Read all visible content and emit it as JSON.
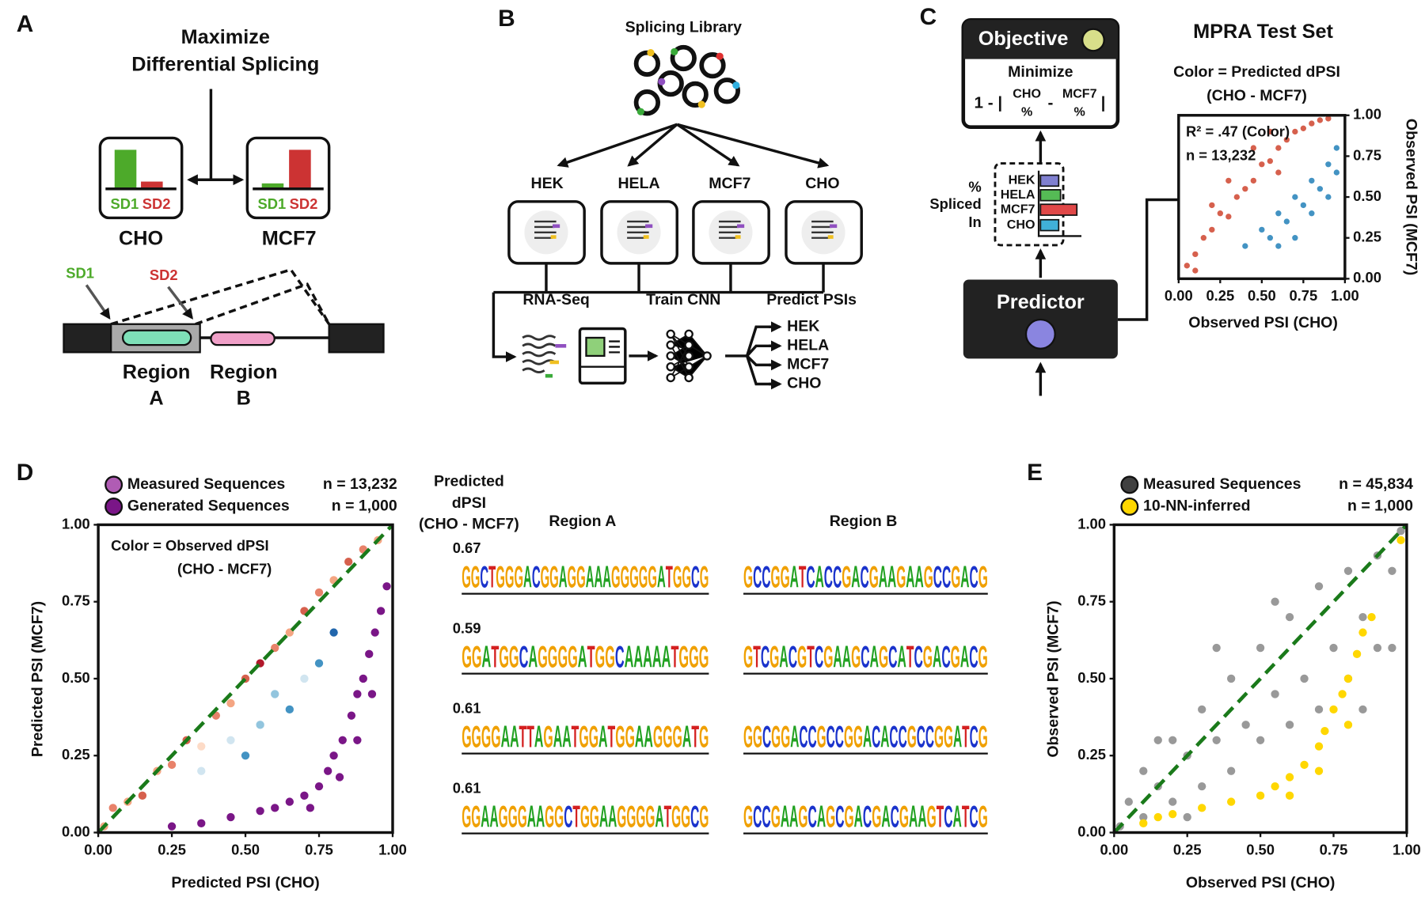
{
  "panels": {
    "a": {
      "letter": "A",
      "title": [
        "Maximize",
        "Differential Splicing"
      ],
      "cho_box": {
        "sd1": "SD1",
        "sd2": "SD2",
        "label": "CHO"
      },
      "mcf7_box": {
        "sd1": "SD1",
        "sd2": "SD2",
        "label": "MCF7"
      },
      "gene": {
        "sd1": "SD1",
        "sd2": "SD2",
        "region_a": [
          "Region",
          "A"
        ],
        "region_b": [
          "Region",
          "B"
        ]
      }
    },
    "b": {
      "letter": "B",
      "title": "Splicing Library",
      "cells": [
        "HEK",
        "HELA",
        "MCF7",
        "CHO"
      ],
      "steps": [
        "RNA-Seq",
        "Train CNN",
        "Predict PSIs"
      ],
      "outputs": [
        "HEK",
        "HELA",
        "MCF7",
        "CHO"
      ]
    },
    "c": {
      "letter": "C",
      "objective": {
        "title": "Objective",
        "goal": "Minimize",
        "formula": [
          "1 - |",
          "CHO",
          "%",
          "-",
          "MCF7",
          "%",
          "|"
        ]
      },
      "psi_bars": {
        "labels": [
          "HEK",
          "HELA",
          "MCF7",
          "CHO"
        ],
        "axis": [
          "%",
          "Spliced",
          "In"
        ]
      },
      "predictor": "Predictor"
    },
    "d": {
      "letter": "D",
      "logos": {
        "title": [
          "Predicted",
          "dPSI",
          "(CHO - MCF7)"
        ],
        "regions": [
          "Region A",
          "Region B"
        ],
        "rows": [
          {
            "dpsi": 0.67,
            "region_a": "GGCTGGGACGGAGGAAAGGGGGATGGCG",
            "region_b": "GCCGGATCACCGACGAAGAAGCCGACG"
          },
          {
            "dpsi": 0.59,
            "region_a": "GGATGGCAGGGGATGGCAAAAATGGG",
            "region_b": "GTCGACGTCGAAGCAGCATCGACGACG"
          },
          {
            "dpsi": 0.61,
            "region_a": "GGGGAATTAGAATGGATGGAAGGGATG",
            "region_b": "GGCGGACCGCCGGACACCGCCGGATCG"
          },
          {
            "dpsi": 0.61,
            "region_a": "GGAAGGGAAGGCTGGAAGGGGATGGCG",
            "region_b": "GCCGAAGCAGCGACGACGAAGTCATCG"
          }
        ]
      }
    },
    "e": {
      "letter": "E"
    }
  },
  "chart_data": [
    {
      "type": "scatter",
      "title": "MPRA Test Set",
      "subtitle": [
        "Color = Predicted dPSI",
        "(CHO - MCF7)"
      ],
      "annotations": [
        "R² = .47 (Color)",
        "n = 13,232"
      ],
      "x_label": "Observed PSI (CHO)",
      "y_label": "Observed PSI (MCF7)",
      "y_axis_side": "right",
      "xlim": [
        0,
        1
      ],
      "ylim": [
        0,
        1
      ],
      "xticks": [
        {
          "value": 0,
          "label": "0.00"
        },
        0.25,
        {
          "value": 0.5,
          "label": "0.50"
        },
        0.75,
        {
          "value": 1,
          "label": "1.00"
        }
      ],
      "yticks": [
        {
          "value": 0,
          "label": "0.00"
        },
        0.25,
        {
          "value": 0.5,
          "label": "0.50"
        },
        0.75,
        {
          "value": 1,
          "label": "1.00"
        }
      ],
      "series": [
        {
          "color": "#d6604d",
          "x": [
            0.05,
            0.1,
            0.15,
            0.2,
            0.25,
            0.3,
            0.35,
            0.4,
            0.45,
            0.5,
            0.55,
            0.6,
            0.65,
            0.7,
            0.75,
            0.8,
            0.85,
            0.9,
            0.2,
            0.3,
            0.45,
            0.55,
            0.1,
            0.6
          ],
          "values": [
            0.08,
            0.15,
            0.25,
            0.3,
            0.4,
            0.38,
            0.5,
            0.55,
            0.6,
            0.7,
            0.72,
            0.8,
            0.85,
            0.9,
            0.92,
            0.95,
            0.97,
            0.98,
            0.45,
            0.6,
            0.8,
            0.9,
            0.05,
            0.65
          ]
        },
        {
          "color": "#4393c3",
          "x": [
            0.4,
            0.5,
            0.55,
            0.6,
            0.65,
            0.7,
            0.75,
            0.8,
            0.85,
            0.9,
            0.95,
            0.7,
            0.8,
            0.9,
            0.6,
            0.95
          ],
          "values": [
            0.2,
            0.3,
            0.25,
            0.4,
            0.35,
            0.5,
            0.45,
            0.6,
            0.55,
            0.7,
            0.8,
            0.25,
            0.4,
            0.5,
            0.2,
            0.65
          ]
        }
      ]
    },
    {
      "type": "scatter",
      "x_label": "Predicted PSI (CHO)",
      "y_label": "Predicted PSI (MCF7)",
      "annotations": [
        "Color = Observed dPSI",
        "(CHO - MCF7)"
      ],
      "diagonal": true,
      "legend": "top",
      "xlim": [
        0,
        1
      ],
      "ylim": [
        0,
        1
      ],
      "xticks": [
        {
          "value": 0,
          "label": "0.00"
        },
        0.25,
        {
          "value": 0.5,
          "label": "0.50"
        },
        0.75,
        {
          "value": 1,
          "label": "1.00"
        }
      ],
      "yticks": [
        {
          "value": 0,
          "label": "0.00"
        },
        0.25,
        {
          "value": 0.5,
          "label": "0.50"
        },
        0.75,
        {
          "value": 1,
          "label": "1.00"
        }
      ],
      "series": [
        {
          "name": "Measured Sequences",
          "n_label": "n = 13,232",
          "color": "#b05cb4",
          "x": [
            0.02,
            0.05,
            0.1,
            0.15,
            0.2,
            0.25,
            0.3,
            0.35,
            0.4,
            0.45,
            0.5,
            0.55,
            0.6,
            0.65,
            0.7,
            0.75,
            0.8,
            0.85,
            0.9,
            0.95,
            0.6,
            0.65,
            0.7,
            0.55,
            0.75,
            0.45,
            0.8,
            0.35,
            0.5
          ],
          "values": [
            0.02,
            0.08,
            0.1,
            0.12,
            0.2,
            0.22,
            0.3,
            0.28,
            0.38,
            0.42,
            0.5,
            0.55,
            0.6,
            0.65,
            0.72,
            0.78,
            0.82,
            0.88,
            0.92,
            0.95,
            0.45,
            0.4,
            0.5,
            0.35,
            0.55,
            0.3,
            0.65,
            0.2,
            0.25
          ],
          "point_colors": [
            "#f4a582",
            "#e8826a",
            "#f4a582",
            "#d6604d",
            "#f4a582",
            "#e8826a",
            "#d6604d",
            "#fddbc7",
            "#e8826a",
            "#f4a582",
            "#d6604d",
            "#b2182b",
            "#e8826a",
            "#f4a582",
            "#d6604d",
            "#e8826a",
            "#f4a582",
            "#d6604d",
            "#e8826a",
            "#f4a582",
            "#92c5de",
            "#4393c3",
            "#d1e5f0",
            "#92c5de",
            "#4393c3",
            "#d1e5f0",
            "#2166ac",
            "#d1e5f0",
            "#4393c3"
          ]
        },
        {
          "name": "Generated Sequences",
          "n_label": "n = 1,000",
          "color": "#7a1687",
          "x": [
            0.25,
            0.35,
            0.45,
            0.55,
            0.6,
            0.65,
            0.7,
            0.75,
            0.78,
            0.8,
            0.83,
            0.86,
            0.88,
            0.9,
            0.92,
            0.94,
            0.96,
            0.98,
            0.72,
            0.82,
            0.88,
            0.93
          ],
          "values": [
            0.02,
            0.03,
            0.05,
            0.07,
            0.08,
            0.1,
            0.12,
            0.15,
            0.2,
            0.25,
            0.3,
            0.38,
            0.45,
            0.5,
            0.58,
            0.65,
            0.72,
            0.8,
            0.08,
            0.18,
            0.3,
            0.45
          ]
        }
      ]
    },
    {
      "type": "scatter",
      "x_label": "Observed PSI (CHO)",
      "y_label": "Observed PSI (MCF7)",
      "diagonal": true,
      "legend": "top",
      "xlim": [
        0,
        1
      ],
      "ylim": [
        0,
        1
      ],
      "xticks": [
        {
          "value": 0,
          "label": "0.00"
        },
        0.25,
        {
          "value": 0.5,
          "label": "0.50"
        },
        0.75,
        {
          "value": 1,
          "label": "1.00"
        }
      ],
      "yticks": [
        {
          "value": 0,
          "label": "0.00"
        },
        0.25,
        {
          "value": 0.5,
          "label": "0.50"
        },
        0.75,
        {
          "value": 1,
          "label": "1.00"
        }
      ],
      "series": [
        {
          "name": "Measured Sequences",
          "n_label": "n = 45,834",
          "color": "#000000",
          "opacity": 0.4,
          "x": [
            0.02,
            0.05,
            0.1,
            0.1,
            0.15,
            0.2,
            0.2,
            0.25,
            0.3,
            0.3,
            0.35,
            0.4,
            0.4,
            0.45,
            0.5,
            0.5,
            0.55,
            0.6,
            0.6,
            0.65,
            0.7,
            0.7,
            0.75,
            0.8,
            0.8,
            0.85,
            0.9,
            0.9,
            0.95,
            0.98,
            0.35,
            0.55,
            0.85,
            0.95,
            0.25,
            0.15
          ],
          "values": [
            0.02,
            0.1,
            0.05,
            0.2,
            0.15,
            0.3,
            0.1,
            0.25,
            0.4,
            0.15,
            0.3,
            0.5,
            0.2,
            0.35,
            0.6,
            0.3,
            0.45,
            0.7,
            0.35,
            0.5,
            0.8,
            0.4,
            0.6,
            0.85,
            0.5,
            0.7,
            0.9,
            0.6,
            0.85,
            0.98,
            0.6,
            0.75,
            0.4,
            0.6,
            0.05,
            0.3
          ]
        },
        {
          "name": "10-NN-inferred",
          "n_label": "n = 1,000",
          "color": "#ffd700",
          "x": [
            0.1,
            0.15,
            0.2,
            0.3,
            0.4,
            0.5,
            0.55,
            0.6,
            0.65,
            0.7,
            0.72,
            0.75,
            0.78,
            0.8,
            0.83,
            0.85,
            0.88,
            0.98,
            0.6,
            0.7,
            0.8
          ],
          "values": [
            0.03,
            0.05,
            0.06,
            0.08,
            0.1,
            0.12,
            0.15,
            0.18,
            0.22,
            0.28,
            0.33,
            0.4,
            0.45,
            0.5,
            0.58,
            0.65,
            0.7,
            0.95,
            0.12,
            0.2,
            0.35
          ]
        }
      ]
    }
  ]
}
